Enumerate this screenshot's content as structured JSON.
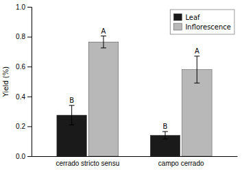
{
  "chart_data": {
    "type": "bar",
    "y_label": "Yield (%)",
    "categories": [
      "cerrado stricto sensu",
      "campo cerrado"
    ],
    "series": [
      {
        "name": "Leaf",
        "color": "#1a1a1a",
        "values": [
          0.275,
          0.14
        ],
        "errors": [
          0.065,
          0.025
        ],
        "annotations": [
          "B",
          "B"
        ]
      },
      {
        "name": "Inflorescence",
        "color": "#b8b8b8",
        "values": [
          0.765,
          0.58
        ],
        "errors": [
          0.04,
          0.09
        ],
        "annotations": [
          "A",
          "A"
        ]
      }
    ],
    "ylim": [
      0.0,
      1.0
    ],
    "yticks": [
      {
        "value": 0.0,
        "label": "0.0"
      },
      0.2,
      0.4,
      0.6,
      0.8,
      {
        "value": 1.0,
        "label": "1.0"
      }
    ],
    "legend": "upper right",
    "grid": false
  }
}
